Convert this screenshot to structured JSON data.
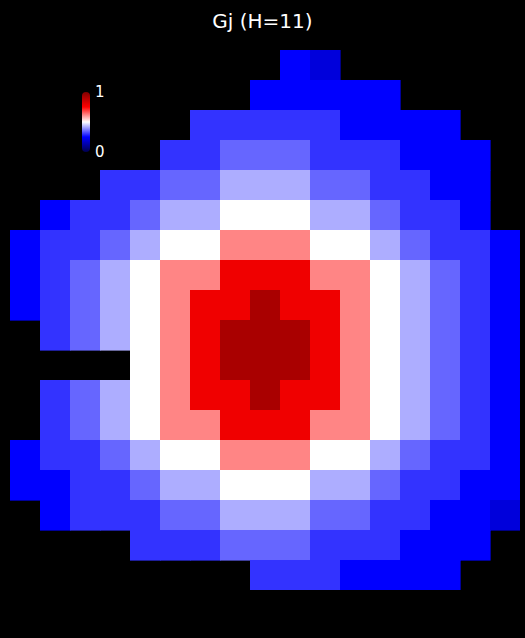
{
  "chart_data": {
    "type": "heatmap",
    "title": "Gj (H=11)",
    "tick_labels": false,
    "colorbar_range": [
      0,
      1
    ],
    "colorbar_ticks": [
      0,
      1
    ],
    "cells": [
      [
        null,
        null,
        null,
        null,
        null,
        null,
        null,
        null,
        null,
        0.25,
        0.2,
        null,
        null,
        null,
        null,
        null,
        null
      ],
      [
        null,
        null,
        null,
        null,
        null,
        null,
        null,
        null,
        0.25,
        0.25,
        0.25,
        0.25,
        0.25,
        null,
        null,
        null,
        null
      ],
      [
        null,
        null,
        null,
        null,
        null,
        null,
        0.3,
        0.3,
        0.3,
        0.3,
        0.3,
        0.25,
        0.25,
        0.25,
        0.25,
        null,
        null
      ],
      [
        null,
        null,
        null,
        null,
        null,
        0.3,
        0.3,
        0.35,
        0.35,
        0.35,
        0.3,
        0.3,
        0.3,
        0.25,
        0.25,
        0.25,
        null
      ],
      [
        null,
        null,
        null,
        0.3,
        0.3,
        0.35,
        0.35,
        0.42,
        0.42,
        0.42,
        0.35,
        0.35,
        0.3,
        0.3,
        0.25,
        0.25,
        null
      ],
      [
        null,
        0.25,
        0.3,
        0.3,
        0.35,
        0.42,
        0.42,
        0.5,
        0.5,
        0.5,
        0.42,
        0.42,
        0.35,
        0.3,
        0.3,
        0.25,
        null
      ],
      [
        0.25,
        0.3,
        0.3,
        0.35,
        0.42,
        0.5,
        0.5,
        0.62,
        0.62,
        0.62,
        0.5,
        0.5,
        0.42,
        0.35,
        0.3,
        0.3,
        0.25
      ],
      [
        0.25,
        0.3,
        0.35,
        0.42,
        0.5,
        0.62,
        0.62,
        0.78,
        0.78,
        0.78,
        0.62,
        0.62,
        0.5,
        0.42,
        0.35,
        0.3,
        0.25
      ],
      [
        0.25,
        0.3,
        0.35,
        0.42,
        0.5,
        0.62,
        0.78,
        0.78,
        0.92,
        0.78,
        0.78,
        0.62,
        0.5,
        0.42,
        0.35,
        0.3,
        0.25
      ],
      [
        null,
        0.3,
        0.35,
        0.42,
        0.5,
        0.62,
        0.78,
        0.92,
        0.92,
        0.92,
        0.78,
        0.62,
        0.5,
        0.42,
        0.35,
        0.3,
        0.25
      ],
      [
        null,
        null,
        null,
        null,
        0.5,
        0.62,
        0.78,
        0.92,
        0.92,
        0.92,
        0.78,
        0.62,
        0.5,
        0.42,
        0.35,
        0.3,
        0.25
      ],
      [
        null,
        0.3,
        0.35,
        0.42,
        0.5,
        0.62,
        0.78,
        0.78,
        0.92,
        0.78,
        0.78,
        0.62,
        0.5,
        0.42,
        0.35,
        0.3,
        0.25
      ],
      [
        null,
        0.3,
        0.35,
        0.42,
        0.5,
        0.62,
        0.62,
        0.78,
        0.78,
        0.78,
        0.62,
        0.62,
        0.5,
        0.42,
        0.35,
        0.3,
        0.25
      ],
      [
        0.25,
        0.3,
        0.3,
        0.35,
        0.42,
        0.5,
        0.5,
        0.62,
        0.62,
        0.62,
        0.5,
        0.5,
        0.42,
        0.35,
        0.3,
        0.3,
        0.25
      ],
      [
        0.25,
        0.25,
        0.3,
        0.3,
        0.35,
        0.42,
        0.42,
        0.5,
        0.5,
        0.5,
        0.42,
        0.42,
        0.35,
        0.3,
        0.3,
        0.25,
        0.25
      ],
      [
        null,
        0.25,
        0.3,
        0.3,
        0.3,
        0.35,
        0.35,
        0.42,
        0.42,
        0.42,
        0.35,
        0.35,
        0.3,
        0.3,
        0.25,
        0.25,
        0.2
      ],
      [
        null,
        null,
        null,
        null,
        0.3,
        0.3,
        0.3,
        0.35,
        0.35,
        0.35,
        0.3,
        0.3,
        0.3,
        0.25,
        0.25,
        0.25,
        null
      ],
      [
        null,
        null,
        null,
        null,
        null,
        null,
        null,
        null,
        0.3,
        0.3,
        0.3,
        0.25,
        0.25,
        0.25,
        0.25,
        null,
        null
      ]
    ]
  }
}
